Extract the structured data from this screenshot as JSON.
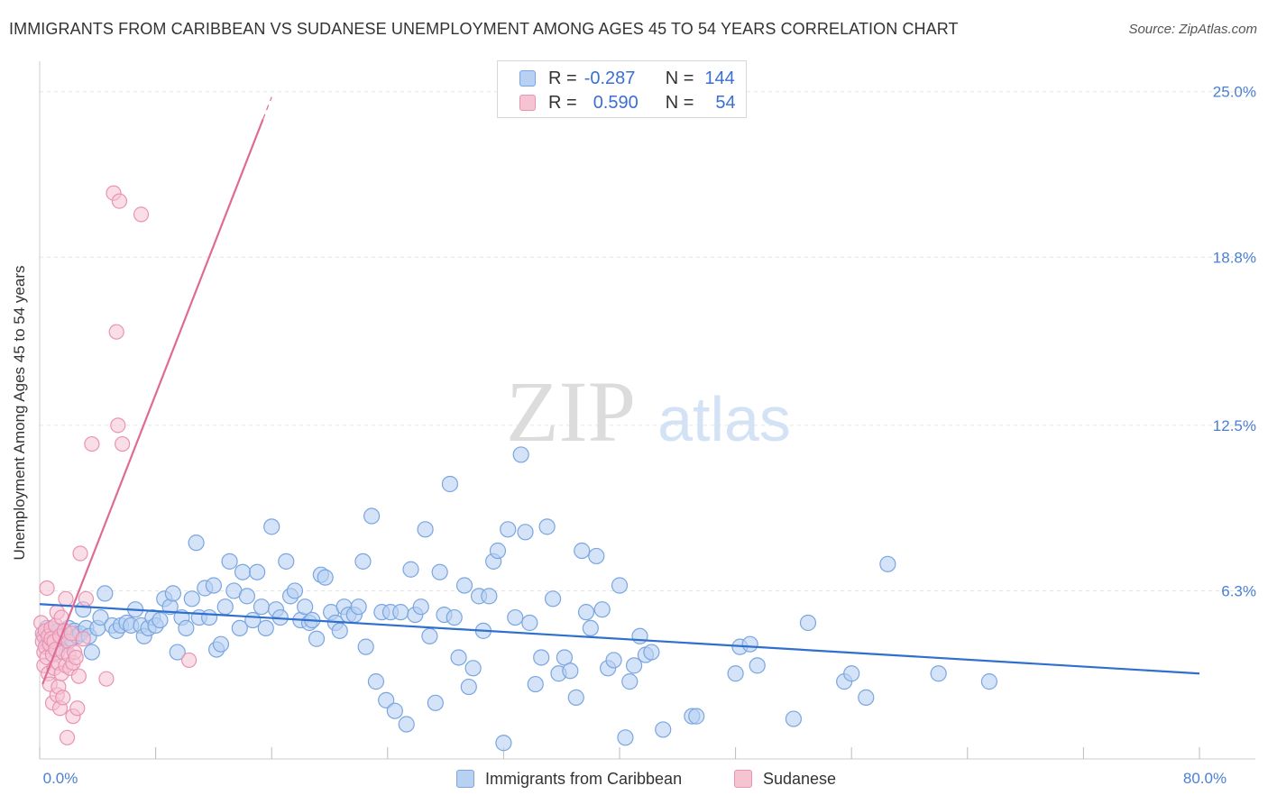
{
  "title": "IMMIGRANTS FROM CARIBBEAN VS SUDANESE UNEMPLOYMENT AMONG AGES 45 TO 54 YEARS CORRELATION CHART",
  "source": "Source: ZipAtlas.com",
  "watermark": {
    "zip": "ZIP",
    "atlas": "atlas"
  },
  "legend": {
    "r_label": "R =",
    "n_label": "N =",
    "rows": [
      {
        "r": "-0.287",
        "n": "144"
      },
      {
        "r": "0.590",
        "n": "54"
      }
    ]
  },
  "colors": {
    "blue_fill": "#b8d0f2",
    "blue_stroke": "#7aa6e0",
    "blue_line": "#2f6fcf",
    "pink_fill": "#f6c3d3",
    "pink_stroke": "#e993b1",
    "pink_line": "#e06a96",
    "tick_text": "#4a7fd4",
    "grid": "#e5e5e5"
  },
  "chart_data": {
    "type": "scatter",
    "title": "IMMIGRANTS FROM CARIBBEAN VS SUDANESE UNEMPLOYMENT AMONG AGES 45 TO 54 YEARS CORRELATION CHART",
    "xlabel": "",
    "ylabel": "Unemployment Among Ages 45 to 54 years",
    "xlim": [
      0,
      80
    ],
    "ylim": [
      0,
      25.8
    ],
    "x_tick_labels": [
      "0.0%",
      "80.0%"
    ],
    "y_ticks": [
      6.3,
      12.5,
      18.8,
      25.0
    ],
    "y_tick_labels": [
      "6.3%",
      "12.5%",
      "18.8%",
      "25.0%"
    ],
    "grid": true,
    "legend_position": "top-center",
    "series": [
      {
        "name": "Immigrants from Caribbean",
        "r": -0.287,
        "n": 144,
        "trend": {
          "x": [
            0,
            80
          ],
          "y": [
            5.8,
            3.2
          ]
        },
        "points": [
          [
            0.3,
            4.6
          ],
          [
            0.5,
            4.9
          ],
          [
            0.6,
            4.3
          ],
          [
            0.8,
            4.7
          ],
          [
            1.0,
            4.4
          ],
          [
            1.2,
            4.0
          ],
          [
            1.3,
            4.8
          ],
          [
            1.4,
            4.5
          ],
          [
            1.6,
            4.6
          ],
          [
            1.8,
            4.3
          ],
          [
            2.0,
            4.9
          ],
          [
            2.2,
            4.5
          ],
          [
            2.4,
            4.8
          ],
          [
            2.6,
            4.6
          ],
          [
            2.8,
            4.7
          ],
          [
            3.0,
            5.6
          ],
          [
            3.2,
            4.9
          ],
          [
            3.4,
            4.6
          ],
          [
            3.6,
            4.0
          ],
          [
            4.0,
            4.9
          ],
          [
            4.2,
            5.3
          ],
          [
            4.5,
            6.2
          ],
          [
            5.0,
            5.0
          ],
          [
            5.3,
            4.8
          ],
          [
            5.6,
            5.0
          ],
          [
            6.0,
            5.1
          ],
          [
            6.3,
            5.0
          ],
          [
            6.6,
            5.6
          ],
          [
            7.0,
            5.0
          ],
          [
            7.2,
            4.6
          ],
          [
            7.5,
            4.9
          ],
          [
            7.8,
            5.3
          ],
          [
            8.0,
            5.0
          ],
          [
            8.3,
            5.2
          ],
          [
            8.6,
            6.0
          ],
          [
            9.0,
            5.7
          ],
          [
            9.2,
            6.2
          ],
          [
            9.5,
            4.0
          ],
          [
            9.8,
            5.3
          ],
          [
            10.1,
            4.9
          ],
          [
            10.5,
            6.0
          ],
          [
            10.8,
            8.1
          ],
          [
            11.0,
            5.3
          ],
          [
            11.4,
            6.4
          ],
          [
            11.7,
            5.3
          ],
          [
            12.0,
            6.5
          ],
          [
            12.2,
            4.1
          ],
          [
            12.5,
            4.3
          ],
          [
            12.8,
            5.7
          ],
          [
            13.1,
            7.4
          ],
          [
            13.4,
            6.3
          ],
          [
            13.8,
            4.9
          ],
          [
            14.0,
            7.0
          ],
          [
            14.3,
            6.1
          ],
          [
            14.7,
            5.2
          ],
          [
            15.0,
            7.0
          ],
          [
            15.3,
            5.7
          ],
          [
            15.6,
            4.9
          ],
          [
            16.0,
            8.7
          ],
          [
            16.3,
            5.6
          ],
          [
            16.6,
            5.3
          ],
          [
            17.0,
            7.4
          ],
          [
            17.3,
            6.1
          ],
          [
            17.6,
            6.3
          ],
          [
            18.0,
            5.2
          ],
          [
            18.3,
            5.7
          ],
          [
            18.6,
            5.1
          ],
          [
            18.8,
            5.2
          ],
          [
            19.1,
            4.5
          ],
          [
            19.4,
            6.9
          ],
          [
            19.7,
            6.8
          ],
          [
            20.1,
            5.5
          ],
          [
            20.4,
            5.1
          ],
          [
            20.7,
            4.8
          ],
          [
            21.0,
            5.7
          ],
          [
            21.3,
            5.4
          ],
          [
            21.7,
            5.4
          ],
          [
            22.0,
            5.7
          ],
          [
            22.3,
            7.4
          ],
          [
            22.5,
            4.2
          ],
          [
            22.9,
            9.1
          ],
          [
            23.2,
            2.9
          ],
          [
            23.6,
            5.5
          ],
          [
            23.9,
            2.2
          ],
          [
            24.2,
            5.5
          ],
          [
            24.5,
            1.8
          ],
          [
            24.9,
            5.5
          ],
          [
            25.3,
            1.3
          ],
          [
            25.6,
            7.1
          ],
          [
            25.9,
            5.4
          ],
          [
            26.3,
            5.7
          ],
          [
            26.6,
            8.6
          ],
          [
            26.9,
            4.6
          ],
          [
            27.3,
            2.1
          ],
          [
            27.6,
            7.0
          ],
          [
            27.9,
            5.4
          ],
          [
            28.3,
            10.3
          ],
          [
            28.6,
            5.3
          ],
          [
            28.9,
            3.8
          ],
          [
            29.3,
            6.5
          ],
          [
            29.6,
            2.7
          ],
          [
            29.9,
            3.4
          ],
          [
            30.3,
            6.1
          ],
          [
            30.6,
            4.8
          ],
          [
            31.0,
            6.1
          ],
          [
            31.3,
            7.4
          ],
          [
            31.6,
            7.8
          ],
          [
            32.0,
            0.6
          ],
          [
            32.3,
            8.6
          ],
          [
            32.8,
            5.3
          ],
          [
            33.2,
            11.4
          ],
          [
            33.5,
            8.5
          ],
          [
            33.8,
            5.1
          ],
          [
            34.2,
            2.8
          ],
          [
            34.6,
            3.8
          ],
          [
            35.0,
            8.7
          ],
          [
            35.4,
            6.0
          ],
          [
            35.8,
            3.2
          ],
          [
            36.2,
            3.8
          ],
          [
            36.6,
            3.3
          ],
          [
            37.0,
            2.3
          ],
          [
            37.4,
            7.8
          ],
          [
            37.7,
            5.5
          ],
          [
            38.0,
            4.9
          ],
          [
            38.4,
            7.6
          ],
          [
            38.8,
            5.6
          ],
          [
            39.2,
            3.4
          ],
          [
            39.6,
            3.7
          ],
          [
            40.0,
            6.5
          ],
          [
            40.4,
            0.8
          ],
          [
            40.7,
            2.9
          ],
          [
            41.0,
            3.5
          ],
          [
            41.4,
            4.6
          ],
          [
            41.8,
            3.9
          ],
          [
            42.2,
            4.0
          ],
          [
            43.0,
            1.1
          ],
          [
            45.0,
            1.6
          ],
          [
            45.3,
            1.6
          ],
          [
            48.0,
            3.2
          ],
          [
            48.3,
            4.2
          ],
          [
            49.0,
            4.3
          ],
          [
            49.5,
            3.5
          ],
          [
            52.0,
            1.5
          ],
          [
            53.0,
            5.1
          ],
          [
            55.5,
            2.9
          ],
          [
            56.0,
            3.2
          ],
          [
            57.0,
            2.3
          ],
          [
            58.5,
            7.3
          ],
          [
            62.0,
            3.2
          ],
          [
            65.5,
            2.9
          ]
        ]
      },
      {
        "name": "Sudanese",
        "r": 0.59,
        "n": 54,
        "trend": {
          "x": [
            0.2,
            16.0
          ],
          "y": [
            2.8,
            24.8
          ]
        },
        "trend_solid_end_x": 15.4,
        "points": [
          [
            0.1,
            5.1
          ],
          [
            0.2,
            4.7
          ],
          [
            0.2,
            4.4
          ],
          [
            0.3,
            4.0
          ],
          [
            0.3,
            3.5
          ],
          [
            0.4,
            4.8
          ],
          [
            0.4,
            4.2
          ],
          [
            0.5,
            3.8
          ],
          [
            0.5,
            6.4
          ],
          [
            0.6,
            4.6
          ],
          [
            0.6,
            3.2
          ],
          [
            0.7,
            4.3
          ],
          [
            0.7,
            2.8
          ],
          [
            0.8,
            4.9
          ],
          [
            0.8,
            4.5
          ],
          [
            0.9,
            3.9
          ],
          [
            0.9,
            2.1
          ],
          [
            1.0,
            4.4
          ],
          [
            1.0,
            3.4
          ],
          [
            1.1,
            5.0
          ],
          [
            1.1,
            4.1
          ],
          [
            1.2,
            2.4
          ],
          [
            1.2,
            5.5
          ],
          [
            1.3,
            3.6
          ],
          [
            1.3,
            2.7
          ],
          [
            1.4,
            4.6
          ],
          [
            1.4,
            1.9
          ],
          [
            1.5,
            3.2
          ],
          [
            1.5,
            5.3
          ],
          [
            1.6,
            4.0
          ],
          [
            1.6,
            2.3
          ],
          [
            1.7,
            4.8
          ],
          [
            1.8,
            3.5
          ],
          [
            1.8,
            6.0
          ],
          [
            1.9,
            0.8
          ],
          [
            2.0,
            4.4
          ],
          [
            2.0,
            3.9
          ],
          [
            2.1,
            3.4
          ],
          [
            2.2,
            4.7
          ],
          [
            2.3,
            3.6
          ],
          [
            2.3,
            1.6
          ],
          [
            2.4,
            4.0
          ],
          [
            2.5,
            3.8
          ],
          [
            2.6,
            1.9
          ],
          [
            2.7,
            3.1
          ],
          [
            2.8,
            7.7
          ],
          [
            3.0,
            4.5
          ],
          [
            3.2,
            6.0
          ],
          [
            4.6,
            3.0
          ],
          [
            5.1,
            21.2
          ],
          [
            5.3,
            16.0
          ],
          [
            5.5,
            20.9
          ],
          [
            5.4,
            12.5
          ],
          [
            7.0,
            20.4
          ],
          [
            5.7,
            11.8
          ],
          [
            3.6,
            11.8
          ],
          [
            10.3,
            3.7
          ]
        ]
      }
    ]
  }
}
